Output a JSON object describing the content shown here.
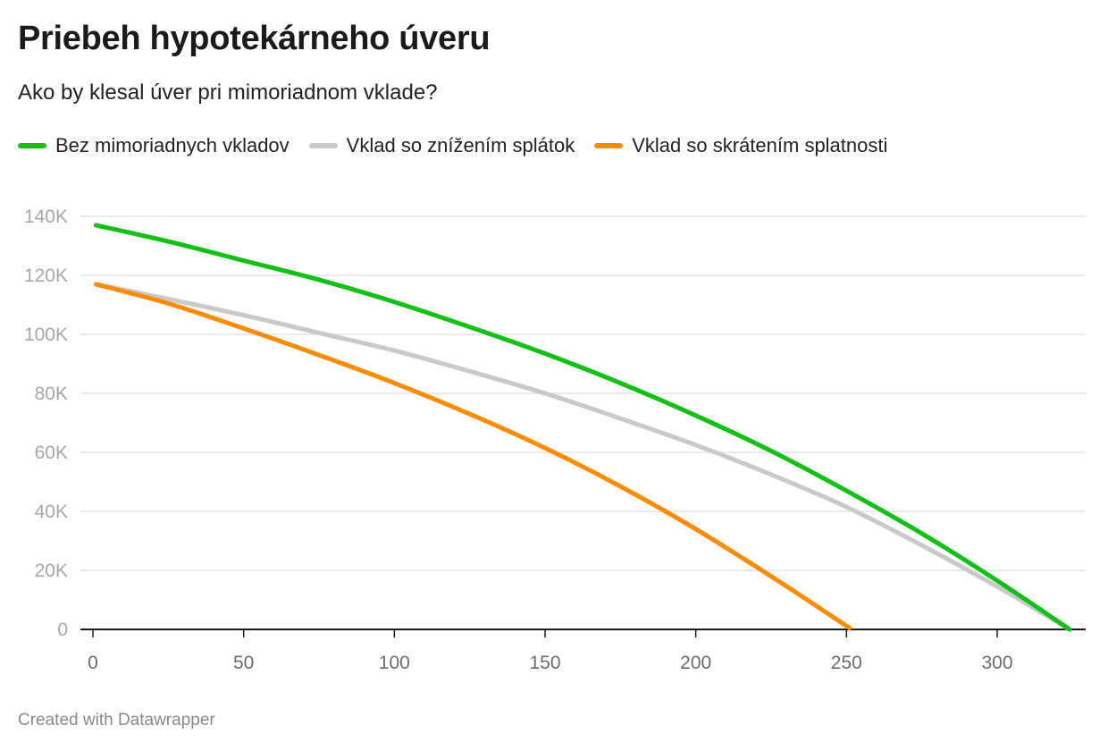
{
  "header": {
    "title": "Priebeh hypotekárneho úveru",
    "subtitle": "Ako by klesal úver pri mimoriadnom vklade?"
  },
  "footer": {
    "credit": "Created with Datawrapper"
  },
  "chart_data": {
    "type": "line",
    "title": "Priebeh hypotekárneho úveru",
    "subtitle": "Ako by klesal úver pri mimoriadnom vklade?",
    "xlabel": "",
    "ylabel": "",
    "xlim": [
      0,
      330
    ],
    "ylim": [
      0,
      140000
    ],
    "x_ticks": [
      0,
      50,
      100,
      150,
      200,
      250,
      300
    ],
    "x_tick_labels": [
      "0",
      "50",
      "100",
      "150",
      "200",
      "250",
      "300"
    ],
    "y_ticks": [
      0,
      20000,
      40000,
      60000,
      80000,
      100000,
      120000,
      140000
    ],
    "y_tick_labels": [
      "0",
      "20K",
      "40K",
      "60K",
      "80K",
      "100K",
      "120K",
      "140K"
    ],
    "grid": true,
    "legend_position": "top",
    "series": [
      {
        "name": "Bez mimoriadnych vkladov",
        "color": "#11c214",
        "x": [
          1,
          25,
          50,
          75,
          100,
          125,
          150,
          175,
          200,
          225,
          250,
          275,
          300,
          324
        ],
        "values": [
          137000,
          131500,
          125000,
          118500,
          111000,
          102500,
          93500,
          83500,
          72500,
          60500,
          47000,
          32500,
          16500,
          0
        ]
      },
      {
        "name": "Vklad so znížením splátok",
        "color": "#c9c9c9",
        "x": [
          1,
          25,
          50,
          75,
          100,
          125,
          150,
          175,
          200,
          225,
          250,
          275,
          300,
          324
        ],
        "values": [
          117000,
          112000,
          106500,
          100500,
          94500,
          87500,
          80000,
          71500,
          62500,
          52500,
          41500,
          28500,
          14500,
          0
        ]
      },
      {
        "name": "Vklad so skrátením splatnosti",
        "color": "#ff8b00",
        "x": [
          1,
          25,
          50,
          75,
          100,
          125,
          150,
          175,
          200,
          225,
          251
        ],
        "values": [
          117000,
          110500,
          102000,
          93000,
          83500,
          73000,
          61500,
          48500,
          34000,
          18000,
          500
        ]
      }
    ]
  }
}
